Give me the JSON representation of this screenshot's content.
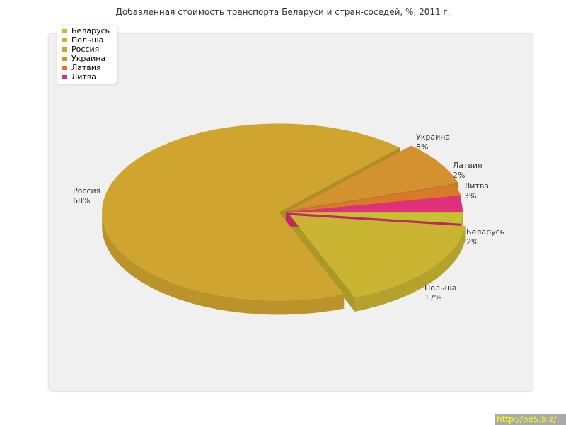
{
  "chart_data": {
    "type": "pie",
    "title": "Добавленная стоимость транспорта Беларуси и стран-соседей, %, 2011 г.",
    "legend_position": "top-left",
    "slices": [
      {
        "name": "Беларусь",
        "value": 2,
        "label": "2%",
        "color": "#c5c230"
      },
      {
        "name": "Польша",
        "value": 17,
        "label": "17%",
        "color": "#c9b531"
      },
      {
        "name": "Россия",
        "value": 68,
        "label": "68%",
        "color": "#cfa530"
      },
      {
        "name": "Украина",
        "value": 8,
        "label": "8%",
        "color": "#d4922e"
      },
      {
        "name": "Латвия",
        "value": 2,
        "label": "2%",
        "color": "#d97a2a"
      },
      {
        "name": "Литва",
        "value": 3,
        "label": "3%",
        "color": "#e0307a"
      }
    ]
  },
  "watermark": "http://be5.biz/"
}
